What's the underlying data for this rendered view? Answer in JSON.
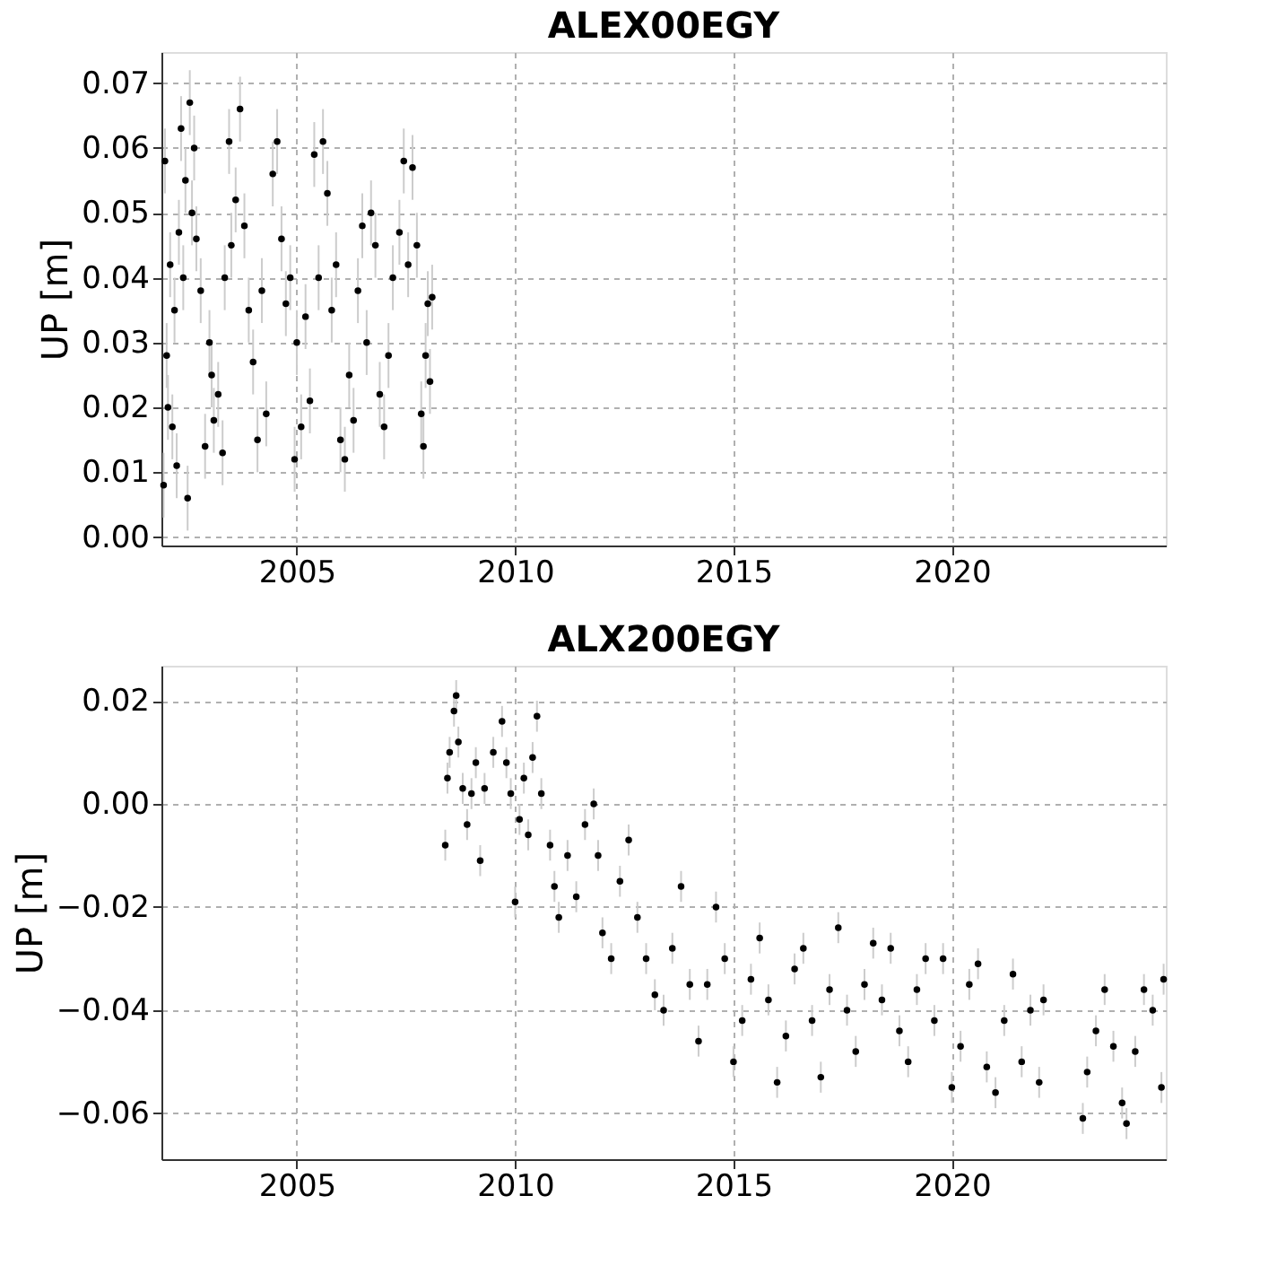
{
  "chart_data": [
    {
      "type": "scatter",
      "title": "ALEX00EGY",
      "ylabel": "UP [m]",
      "marker": "circle",
      "grid": true,
      "xlim": [
        2001.9,
        2024.9
      ],
      "xticks": [
        2005,
        2010,
        2015,
        2020
      ],
      "ylim": [
        -0.0013,
        0.0748
      ],
      "yticks": [
        {
          "value": 0,
          "label": "0.00"
        },
        0.01,
        0.02,
        0.03,
        0.04,
        0.05,
        0.06,
        0.07
      ],
      "series": [
        {
          "color": "#000000",
          "x": [
            2001.95,
            2001.98,
            2002.02,
            2002.05,
            2002.1,
            2002.15,
            2002.2,
            2002.25,
            2002.3,
            2002.35,
            2002.4,
            2002.45,
            2002.5,
            2002.55,
            2002.6,
            2002.65,
            2002.7,
            2002.8,
            2002.9,
            2003.0,
            2003.05,
            2003.1,
            2003.2,
            2003.3,
            2003.35,
            2003.45,
            2003.5,
            2003.6,
            2003.7,
            2003.8,
            2003.9,
            2004.0,
            2004.1,
            2004.2,
            2004.3,
            2004.45,
            2004.55,
            2004.65,
            2004.75,
            2004.85,
            2004.95,
            2005.0,
            2005.1,
            2005.2,
            2005.3,
            2005.4,
            2005.5,
            2005.6,
            2005.7,
            2005.8,
            2005.9,
            2006.0,
            2006.1,
            2006.2,
            2006.3,
            2006.4,
            2006.5,
            2006.6,
            2006.7,
            2006.8,
            2006.9,
            2007.0,
            2007.1,
            2007.2,
            2007.35,
            2007.45,
            2007.55,
            2007.65,
            2007.75,
            2007.85,
            2007.9,
            2007.95,
            2008.0,
            2008.05,
            2008.1
          ],
          "values": [
            0.008,
            0.058,
            0.028,
            0.02,
            0.042,
            0.017,
            0.035,
            0.011,
            0.047,
            0.063,
            0.04,
            0.055,
            0.006,
            0.067,
            0.05,
            0.06,
            0.046,
            0.038,
            0.014,
            0.03,
            0.025,
            0.018,
            0.022,
            0.013,
            0.04,
            0.061,
            0.045,
            0.052,
            0.066,
            0.048,
            0.035,
            0.027,
            0.015,
            0.038,
            0.019,
            0.056,
            0.061,
            0.046,
            0.036,
            0.04,
            0.012,
            0.03,
            0.017,
            0.034,
            0.021,
            0.059,
            0.04,
            0.061,
            0.053,
            0.035,
            0.042,
            0.015,
            0.012,
            0.025,
            0.018,
            0.038,
            0.048,
            0.03,
            0.05,
            0.045,
            0.022,
            0.017,
            0.028,
            0.04,
            0.047,
            0.058,
            0.042,
            0.057,
            0.045,
            0.019,
            0.014,
            0.028,
            0.036,
            0.024,
            0.037
          ],
          "errors": [
            0.005,
            0.005,
            0.005,
            0.005,
            0.005,
            0.005,
            0.005,
            0.005,
            0.005,
            0.005,
            0.005,
            0.005,
            0.005,
            0.005,
            0.005,
            0.005,
            0.005,
            0.005,
            0.005,
            0.005,
            0.005,
            0.005,
            0.005,
            0.005,
            0.005,
            0.005,
            0.005,
            0.005,
            0.005,
            0.005,
            0.005,
            0.005,
            0.005,
            0.005,
            0.005,
            0.005,
            0.005,
            0.005,
            0.005,
            0.005,
            0.005,
            0.005,
            0.005,
            0.005,
            0.005,
            0.005,
            0.005,
            0.005,
            0.005,
            0.005,
            0.005,
            0.005,
            0.005,
            0.005,
            0.005,
            0.005,
            0.005,
            0.005,
            0.005,
            0.005,
            0.005,
            0.005,
            0.005,
            0.005,
            0.005,
            0.005,
            0.005,
            0.005,
            0.005,
            0.005,
            0.005,
            0.005,
            0.005,
            0.005,
            0.005
          ]
        }
      ]
    },
    {
      "type": "scatter",
      "title": "ALX200EGY",
      "ylabel": "UP [m]",
      "marker": "circle",
      "grid": true,
      "xlim": [
        2001.9,
        2024.9
      ],
      "xticks": [
        2005,
        2010,
        2015,
        2020
      ],
      "ylim": [
        -0.0689,
        0.0268
      ],
      "yticks": [
        -0.06,
        -0.04,
        -0.02,
        {
          "value": 0,
          "label": "0.00"
        },
        0.02
      ],
      "series": [
        {
          "color": "#000000",
          "x": [
            2008.4,
            2008.45,
            2008.5,
            2008.6,
            2008.65,
            2008.7,
            2008.8,
            2008.9,
            2009.0,
            2009.1,
            2009.2,
            2009.3,
            2009.5,
            2009.7,
            2009.8,
            2009.9,
            2010.0,
            2010.1,
            2010.2,
            2010.3,
            2010.4,
            2010.5,
            2010.6,
            2010.8,
            2010.9,
            2011.0,
            2011.2,
            2011.4,
            2011.6,
            2011.8,
            2011.9,
            2012.0,
            2012.2,
            2012.4,
            2012.6,
            2012.8,
            2013.0,
            2013.2,
            2013.4,
            2013.6,
            2013.8,
            2014.0,
            2014.2,
            2014.4,
            2014.6,
            2014.8,
            2015.0,
            2015.2,
            2015.4,
            2015.6,
            2015.8,
            2016.0,
            2016.2,
            2016.4,
            2016.6,
            2016.8,
            2017.0,
            2017.2,
            2017.4,
            2017.6,
            2017.8,
            2018.0,
            2018.2,
            2018.4,
            2018.6,
            2018.8,
            2019.0,
            2019.2,
            2019.4,
            2019.6,
            2019.8,
            2020.0,
            2020.2,
            2020.4,
            2020.6,
            2020.8,
            2021.0,
            2021.2,
            2021.4,
            2021.6,
            2021.8,
            2022.0,
            2022.1,
            2023.0,
            2023.1,
            2023.3,
            2023.5,
            2023.7,
            2023.9,
            2024.0,
            2024.2,
            2024.4,
            2024.6,
            2024.8,
            2024.85
          ],
          "values": [
            -0.008,
            0.005,
            0.01,
            0.018,
            0.021,
            0.012,
            0.003,
            -0.004,
            0.002,
            0.008,
            -0.011,
            0.003,
            0.01,
            0.016,
            0.008,
            0.002,
            -0.019,
            -0.003,
            0.005,
            -0.006,
            0.009,
            0.017,
            0.002,
            -0.008,
            -0.016,
            -0.022,
            -0.01,
            -0.018,
            -0.004,
            0.0,
            -0.01,
            -0.025,
            -0.03,
            -0.015,
            -0.007,
            -0.022,
            -0.03,
            -0.037,
            -0.04,
            -0.028,
            -0.016,
            -0.035,
            -0.046,
            -0.035,
            -0.02,
            -0.03,
            -0.05,
            -0.042,
            -0.034,
            -0.026,
            -0.038,
            -0.054,
            -0.045,
            -0.032,
            -0.028,
            -0.042,
            -0.053,
            -0.036,
            -0.024,
            -0.04,
            -0.048,
            -0.035,
            -0.027,
            -0.038,
            -0.028,
            -0.044,
            -0.05,
            -0.036,
            -0.03,
            -0.042,
            -0.03,
            -0.055,
            -0.047,
            -0.035,
            -0.031,
            -0.051,
            -0.056,
            -0.042,
            -0.033,
            -0.05,
            -0.04,
            -0.054,
            -0.038,
            -0.061,
            -0.052,
            -0.044,
            -0.036,
            -0.047,
            -0.058,
            -0.062,
            -0.048,
            -0.036,
            -0.04,
            -0.055,
            -0.034
          ],
          "errors": [
            0.003,
            0.003,
            0.003,
            0.003,
            0.003,
            0.003,
            0.003,
            0.003,
            0.003,
            0.003,
            0.003,
            0.003,
            0.003,
            0.003,
            0.003,
            0.003,
            0.003,
            0.003,
            0.003,
            0.003,
            0.003,
            0.003,
            0.003,
            0.003,
            0.003,
            0.003,
            0.003,
            0.003,
            0.003,
            0.003,
            0.003,
            0.003,
            0.003,
            0.003,
            0.003,
            0.003,
            0.003,
            0.003,
            0.003,
            0.003,
            0.003,
            0.003,
            0.003,
            0.003,
            0.003,
            0.003,
            0.003,
            0.003,
            0.003,
            0.003,
            0.003,
            0.003,
            0.003,
            0.003,
            0.003,
            0.003,
            0.003,
            0.003,
            0.003,
            0.003,
            0.003,
            0.003,
            0.003,
            0.003,
            0.003,
            0.003,
            0.003,
            0.003,
            0.003,
            0.003,
            0.003,
            0.003,
            0.003,
            0.003,
            0.003,
            0.003,
            0.003,
            0.003,
            0.003,
            0.003,
            0.003,
            0.003,
            0.003,
            0.003,
            0.003,
            0.003,
            0.003,
            0.003,
            0.003,
            0.003,
            0.003,
            0.003,
            0.003,
            0.003,
            0.003
          ]
        }
      ]
    }
  ]
}
